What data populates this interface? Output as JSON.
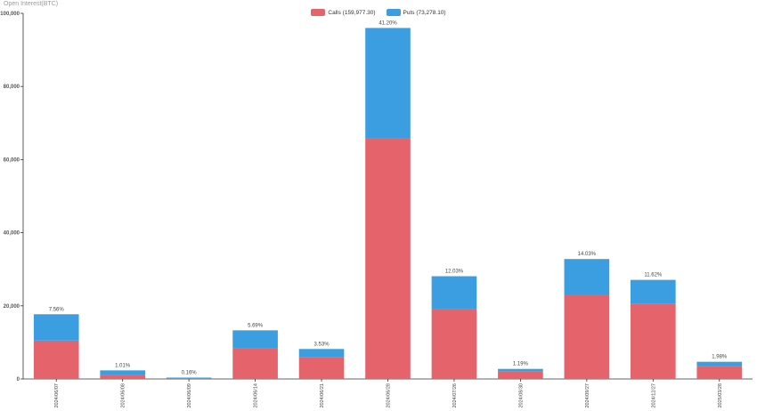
{
  "axis_title": "Open Interest(BTC)",
  "chart_data": {
    "type": "bar",
    "stacked": true,
    "categories": [
      "2024/06/07",
      "2024/06/08",
      "2024/06/09",
      "2024/06/14",
      "2024/06/21",
      "2024/06/28",
      "2024/07/26",
      "2024/08/30",
      "2024/09/27",
      "2024/12/27",
      "2025/03/28"
    ],
    "series": [
      {
        "name": "Calls (159,977.30)",
        "color": "#e5636a",
        "values": [
          10500,
          1200,
          250,
          8500,
          6000,
          65800,
          19000,
          2000,
          23000,
          20600,
          3500
        ]
      },
      {
        "name": "Puts (73,278.10)",
        "color": "#3a9ee0",
        "values": [
          7200,
          1150,
          130,
          4800,
          2200,
          30200,
          9100,
          750,
          9800,
          6500,
          1200
        ]
      }
    ],
    "data_labels": [
      "7.56%",
      "1.01%",
      "0.16%",
      "5.69%",
      "3.53%",
      "41.20%",
      "12.03%",
      "1.19%",
      "14.03%",
      "11.62%",
      "1.98%"
    ],
    "ylim": [
      0,
      100000
    ],
    "yticks": [
      0,
      20000,
      40000,
      60000,
      80000,
      100000
    ],
    "ytick_labels": [
      "0",
      "20,000",
      "40,000",
      "60,000",
      "80,000",
      "100,000"
    ],
    "legend_position": "top-center",
    "grid": false
  }
}
